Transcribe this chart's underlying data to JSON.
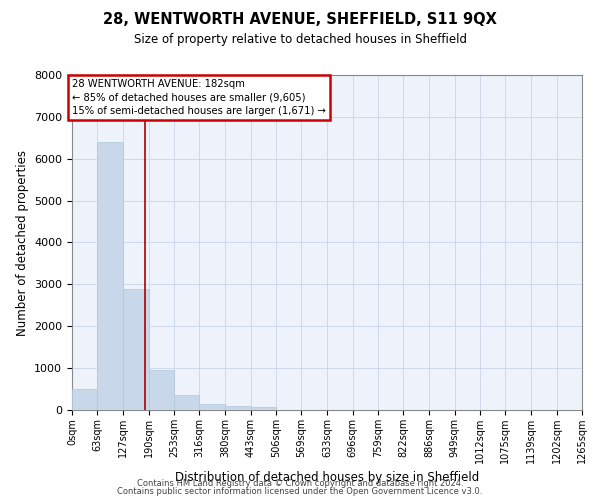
{
  "title": "28, WENTWORTH AVENUE, SHEFFIELD, S11 9QX",
  "subtitle": "Size of property relative to detached houses in Sheffield",
  "xlabel": "Distribution of detached houses by size in Sheffield",
  "ylabel": "Number of detached properties",
  "bar_color": "#c8d8ea",
  "bar_edge_color": "#b0c8dc",
  "bg_color": "#eef2fa",
  "grid_color": "#d0d8ee",
  "vline_color": "#aa0000",
  "vline_x": 182,
  "annotation_text": "28 WENTWORTH AVENUE: 182sqm\n← 85% of detached houses are smaller (9,605)\n15% of semi-detached houses are larger (1,671) →",
  "annotation_box_color": "#cc0000",
  "bins": [
    0,
    63,
    127,
    190,
    253,
    316,
    380,
    443,
    506,
    569,
    633,
    696,
    759,
    822,
    886,
    949,
    1012,
    1075,
    1139,
    1202,
    1265
  ],
  "counts": [
    500,
    6400,
    2900,
    950,
    350,
    150,
    100,
    60,
    0,
    0,
    0,
    0,
    0,
    0,
    0,
    0,
    0,
    0,
    0,
    0
  ],
  "ylim": [
    0,
    8000
  ],
  "yticks": [
    0,
    1000,
    2000,
    3000,
    4000,
    5000,
    6000,
    7000,
    8000
  ],
  "footer_line1": "Contains HM Land Registry data © Crown copyright and database right 2024.",
  "footer_line2": "Contains public sector information licensed under the Open Government Licence v3.0."
}
